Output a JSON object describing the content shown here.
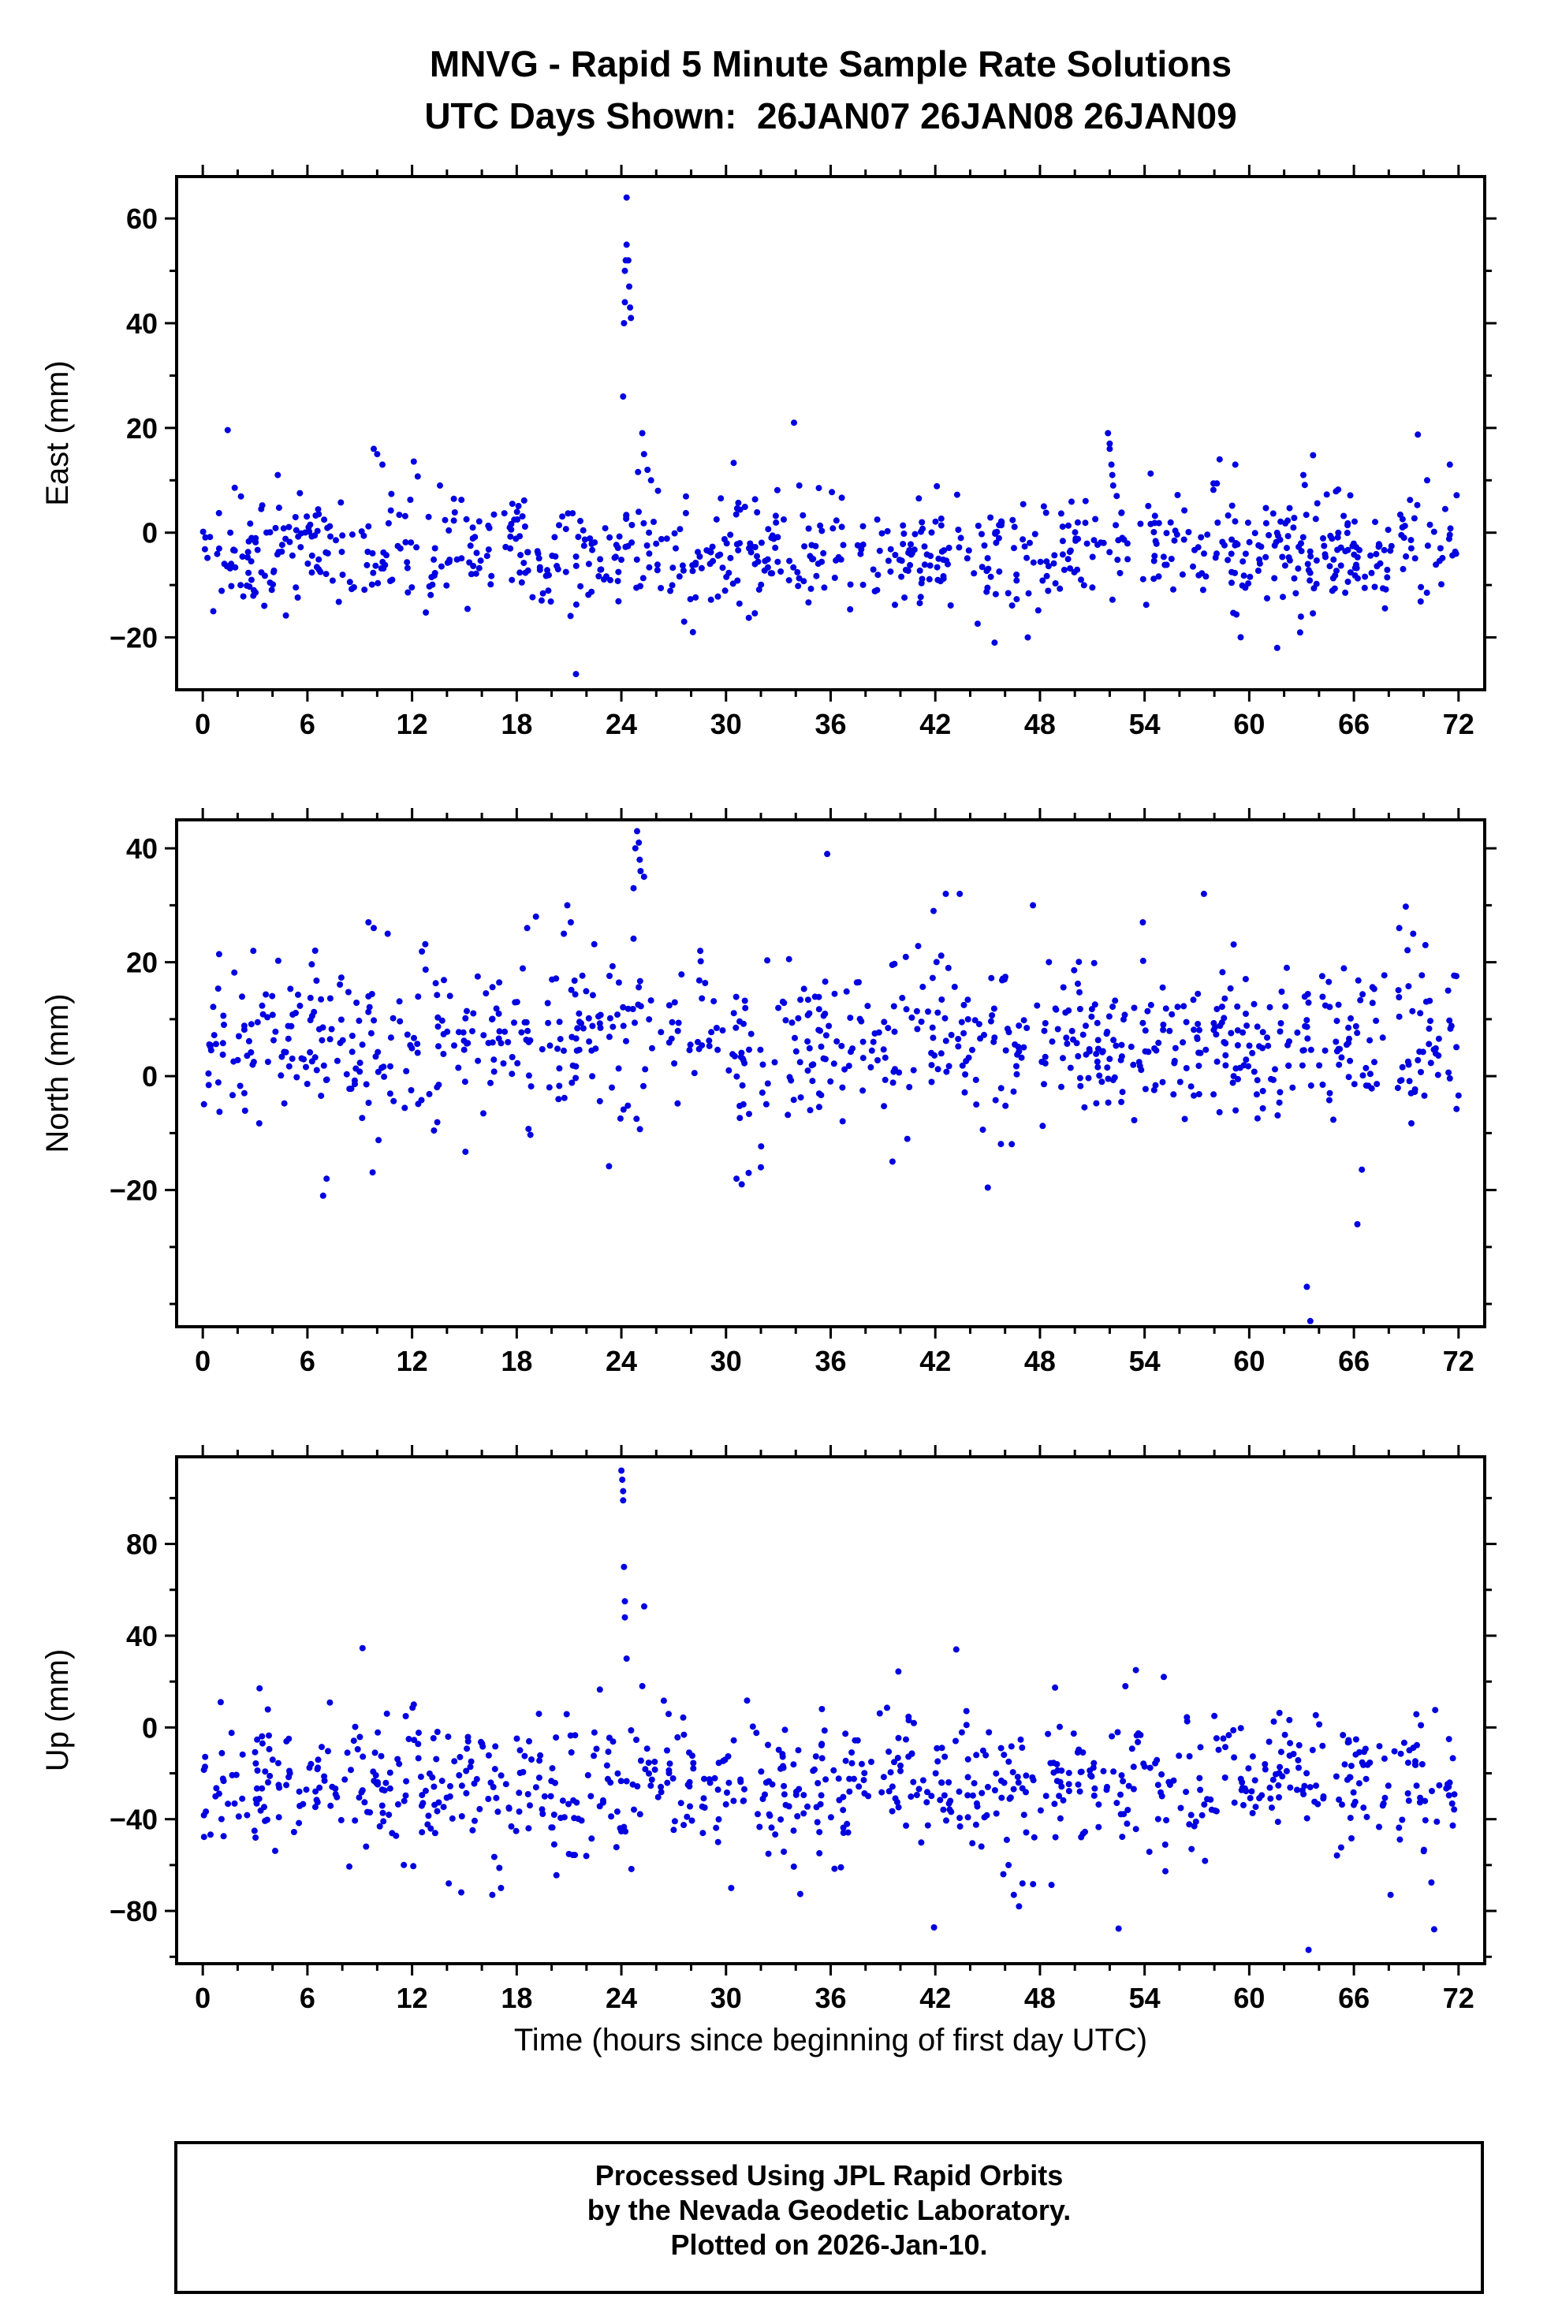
{
  "title": {
    "line1": "MNVG - Rapid 5 Minute Sample Rate Solutions",
    "line2": "UTC Days Shown:  26JAN07 26JAN08 26JAN09"
  },
  "xlabel": "Time (hours since beginning of first day UTC)",
  "footer": {
    "line1": "Processed Using JPL Rapid Orbits",
    "line2": "by the Nevada Geodetic Laboratory.",
    "line3": "Plotted on 2026-Jan-10."
  },
  "marker": {
    "color": "#0000e0",
    "radius": 4,
    "shape": "circle"
  },
  "chart_data": [
    {
      "type": "scatter",
      "panel": "East",
      "ylabel": "East (mm)",
      "xlim": [
        -1.5,
        73.5
      ],
      "xticks": [
        0,
        6,
        12,
        18,
        24,
        30,
        36,
        42,
        48,
        54,
        60,
        66,
        72
      ],
      "xtick_step": 6,
      "xtick_minor": 2,
      "ylim": [
        -30,
        68
      ],
      "yticks": [
        -20,
        0,
        20,
        40,
        60
      ],
      "ytick_minor": 10,
      "grid": false,
      "n_points": 820,
      "seed": 11,
      "mean": -3.5,
      "std": 5,
      "tail_frac": 0.1,
      "tail_std": 9,
      "outliers": [
        [
          21.4,
          -27
        ],
        [
          24.1,
          26
        ],
        [
          24.15,
          40
        ],
        [
          24.2,
          44
        ],
        [
          24.2,
          50
        ],
        [
          24.25,
          52
        ],
        [
          24.3,
          55
        ],
        [
          24.3,
          64
        ],
        [
          24.4,
          52
        ],
        [
          24.45,
          47
        ],
        [
          24.5,
          43
        ],
        [
          24.55,
          41
        ],
        [
          25.2,
          19
        ],
        [
          25.3,
          15
        ],
        [
          25.5,
          12
        ],
        [
          25.7,
          10
        ],
        [
          26.1,
          8
        ],
        [
          27.6,
          -17
        ],
        [
          28.1,
          -19
        ],
        [
          33.9,
          21
        ],
        [
          34.2,
          9
        ],
        [
          45.4,
          -21
        ],
        [
          47.3,
          -20
        ],
        [
          51.9,
          19
        ],
        [
          52.0,
          17
        ],
        [
          52.0,
          16
        ],
        [
          52.1,
          13
        ],
        [
          52.15,
          11
        ],
        [
          52.2,
          9
        ],
        [
          52.4,
          7
        ],
        [
          58.3,
          14
        ],
        [
          59.2,
          13
        ],
        [
          61.6,
          -22
        ],
        [
          63.1,
          11
        ],
        [
          70.2,
          10
        ],
        [
          71.5,
          13
        ],
        [
          9.8,
          16
        ],
        [
          10.0,
          15
        ],
        [
          10.3,
          13
        ],
        [
          4.3,
          11
        ],
        [
          13.6,
          9
        ],
        [
          0.6,
          -15
        ]
      ]
    },
    {
      "type": "scatter",
      "panel": "North",
      "ylabel": "North (mm)",
      "xlim": [
        -1.5,
        73.5
      ],
      "xticks": [
        0,
        6,
        12,
        18,
        24,
        30,
        36,
        42,
        48,
        54,
        60,
        66,
        72
      ],
      "xtick_step": 6,
      "xtick_minor": 2,
      "ylim": [
        -44,
        45
      ],
      "yticks": [
        -20,
        0,
        20,
        40
      ],
      "ytick_minor": 10,
      "grid": false,
      "n_points": 830,
      "seed": 22,
      "mean": 5.5,
      "std": 7,
      "tail_frac": 0.1,
      "tail_std": 11,
      "outliers": [
        [
          24.7,
          33
        ],
        [
          24.8,
          40
        ],
        [
          24.9,
          43
        ],
        [
          25.0,
          41
        ],
        [
          25.05,
          38
        ],
        [
          25.1,
          36
        ],
        [
          25.3,
          35
        ],
        [
          20.9,
          30
        ],
        [
          21.1,
          27
        ],
        [
          20.7,
          25
        ],
        [
          35.8,
          39
        ],
        [
          30.6,
          -18
        ],
        [
          30.9,
          -19
        ],
        [
          31.3,
          -17
        ],
        [
          32.0,
          -16
        ],
        [
          42.6,
          32
        ],
        [
          43.4,
          32
        ],
        [
          41.9,
          29
        ],
        [
          47.6,
          30
        ],
        [
          53.9,
          27
        ],
        [
          57.4,
          32
        ],
        [
          63.3,
          -37
        ],
        [
          63.5,
          -43
        ],
        [
          66.2,
          -26
        ],
        [
          9.5,
          27
        ],
        [
          9.8,
          26
        ],
        [
          10.6,
          25
        ],
        [
          2.9,
          22
        ],
        [
          18.6,
          26
        ],
        [
          19.1,
          28
        ],
        [
          68.6,
          26
        ],
        [
          69.4,
          25
        ],
        [
          70.1,
          23
        ],
        [
          6.9,
          -21
        ],
        [
          7.1,
          -18
        ]
      ]
    },
    {
      "type": "scatter",
      "panel": "Up",
      "ylabel": "Up (mm)",
      "xlim": [
        -1.5,
        73.5
      ],
      "xticks": [
        0,
        6,
        12,
        18,
        24,
        30,
        36,
        42,
        48,
        54,
        60,
        66,
        72
      ],
      "xtick_step": 6,
      "xtick_minor": 2,
      "ylim": [
        -103,
        118
      ],
      "yticks": [
        -80,
        -40,
        0,
        40,
        80
      ],
      "ytick_minor": 20,
      "grid": false,
      "n_points": 800,
      "seed": 33,
      "mean": -25,
      "std": 15,
      "tail_frac": 0.1,
      "tail_std": 26,
      "outliers": [
        [
          24.0,
          112
        ],
        [
          24.05,
          108
        ],
        [
          24.1,
          103
        ],
        [
          24.1,
          99
        ],
        [
          24.15,
          70
        ],
        [
          24.2,
          55
        ],
        [
          24.2,
          48
        ],
        [
          24.3,
          30
        ],
        [
          43.2,
          34
        ],
        [
          63.4,
          -97
        ],
        [
          46.8,
          -78
        ],
        [
          46.5,
          -73
        ],
        [
          47.0,
          -68
        ],
        [
          45.9,
          -64
        ],
        [
          46.2,
          -60
        ],
        [
          53.5,
          25
        ],
        [
          52.9,
          18
        ],
        [
          55.1,
          22
        ],
        [
          16.6,
          -73
        ],
        [
          17.1,
          -70
        ],
        [
          14.1,
          -68
        ],
        [
          30.3,
          -70
        ],
        [
          70.6,
          -88
        ],
        [
          68.1,
          -73
        ],
        [
          12.1,
          10
        ],
        [
          35.5,
          8
        ],
        [
          58.0,
          5
        ]
      ]
    }
  ]
}
